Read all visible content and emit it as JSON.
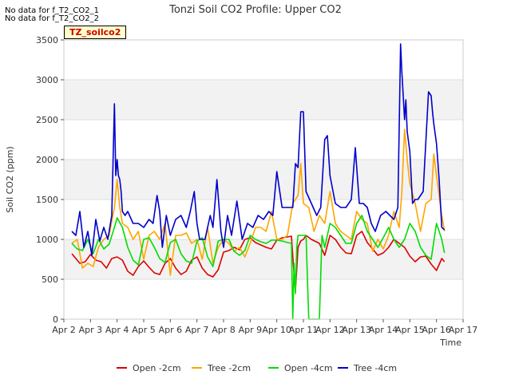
{
  "notes": {
    "line1": "No data for f_T2_CO2_1",
    "line2": "No data for f_T2_CO2_2"
  },
  "badge": "TZ_soilco2",
  "chart_data": {
    "type": "line",
    "title": "Tonzi Soil CO2 Profile: Upper CO2",
    "xlabel": "Time",
    "ylabel": "Soil CO2 (ppm)",
    "xlim": [
      2,
      17
    ],
    "ylim": [
      0,
      3500
    ],
    "yticks": [
      0,
      500,
      1000,
      1500,
      2000,
      2500,
      3000,
      3500
    ],
    "xticks": [
      2,
      3,
      4,
      5,
      6,
      7,
      8,
      9,
      10,
      11,
      12,
      13,
      14,
      15,
      16,
      17
    ],
    "xticklabels": [
      "Apr 2",
      "Apr 3",
      "Apr 4",
      "Apr 5",
      "Apr 6",
      "Apr 7",
      "Apr 8",
      "Apr 9",
      "Apr 10",
      "Apr 11",
      "Apr 12",
      "Apr 13",
      "Apr 14",
      "Apr 15",
      "Apr 16",
      "Apr 17"
    ],
    "legend_position": "bottom",
    "series": [
      {
        "name": "Open -2cm",
        "color": "#dd0000",
        "x": [
          2.3,
          2.6,
          2.8,
          3.0,
          3.2,
          3.4,
          3.6,
          3.8,
          4.0,
          4.2,
          4.4,
          4.6,
          4.8,
          5.0,
          5.2,
          5.4,
          5.6,
          5.8,
          6.0,
          6.2,
          6.4,
          6.6,
          6.8,
          7.0,
          7.2,
          7.4,
          7.6,
          7.8,
          8.0,
          8.2,
          8.4,
          8.6,
          8.8,
          9.0,
          9.2,
          9.4,
          9.6,
          9.8,
          10.0,
          10.2,
          10.4,
          10.55,
          10.62,
          10.7,
          10.8,
          10.9,
          11.0,
          11.1,
          11.3,
          11.6,
          11.8,
          12.0,
          12.2,
          12.4,
          12.6,
          12.8,
          13.0,
          13.2,
          13.4,
          13.6,
          13.8,
          14.0,
          14.2,
          14.4,
          14.6,
          14.8,
          15.0,
          15.2,
          15.4,
          15.6,
          15.8,
          16.0,
          16.2,
          16.3
        ],
        "y": [
          820,
          700,
          720,
          810,
          740,
          720,
          640,
          760,
          780,
          740,
          600,
          550,
          660,
          730,
          650,
          580,
          560,
          700,
          760,
          640,
          560,
          600,
          740,
          780,
          640,
          560,
          530,
          620,
          840,
          860,
          900,
          870,
          1000,
          1020,
          960,
          930,
          900,
          880,
          990,
          1020,
          1030,
          1040,
          700,
          360,
          900,
          980,
          1000,
          1050,
          1000,
          950,
          800,
          1050,
          1000,
          900,
          830,
          820,
          1050,
          1100,
          960,
          880,
          800,
          830,
          900,
          1000,
          950,
          900,
          790,
          720,
          780,
          790,
          690,
          610,
          760,
          720
        ]
      },
      {
        "name": "Tree -2cm",
        "color": "#ffa500",
        "x": [
          2.3,
          2.5,
          2.7,
          2.9,
          3.1,
          3.3,
          3.5,
          3.7,
          3.9,
          4.0,
          4.1,
          4.2,
          4.4,
          4.6,
          4.8,
          5.0,
          5.2,
          5.4,
          5.6,
          5.8,
          6.0,
          6.2,
          6.4,
          6.6,
          6.8,
          7.0,
          7.2,
          7.4,
          7.6,
          7.8,
          8.0,
          8.2,
          8.4,
          8.6,
          8.8,
          9.0,
          9.2,
          9.4,
          9.6,
          9.8,
          10.0,
          10.2,
          10.4,
          10.6,
          10.8,
          10.9,
          11.0,
          11.2,
          11.4,
          11.6,
          11.8,
          12.0,
          12.2,
          12.4,
          12.6,
          12.8,
          13.0,
          13.2,
          13.4,
          13.6,
          13.8,
          14.0,
          14.2,
          14.4,
          14.6,
          14.7,
          14.8,
          14.9,
          15.0,
          15.2,
          15.4,
          15.6,
          15.8,
          15.9,
          16.0,
          16.2,
          16.3
        ],
        "y": [
          950,
          1000,
          640,
          700,
          660,
          900,
          1000,
          1050,
          1400,
          1750,
          1400,
          1200,
          1150,
          1000,
          1100,
          750,
          1050,
          1100,
          1000,
          1200,
          550,
          1050,
          1050,
          1080,
          950,
          1000,
          750,
          1150,
          700,
          900,
          1000,
          950,
          850,
          900,
          780,
          950,
          1150,
          1150,
          1100,
          1350,
          1000,
          1000,
          1050,
          1450,
          1550,
          1950,
          1450,
          1400,
          1100,
          1300,
          1200,
          1600,
          1200,
          1100,
          1050,
          1000,
          1350,
          1250,
          1200,
          850,
          1000,
          880,
          1050,
          1350,
          1150,
          1600,
          2380,
          2000,
          1700,
          1450,
          1100,
          1450,
          1500,
          2070,
          1800,
          1300,
          1100
        ]
      },
      {
        "name": "Open -4cm",
        "color": "#00dd00",
        "x": [
          2.3,
          2.5,
          2.7,
          2.9,
          3.1,
          3.3,
          3.5,
          3.7,
          3.9,
          4.0,
          4.2,
          4.4,
          4.6,
          4.8,
          5.0,
          5.2,
          5.4,
          5.6,
          5.8,
          6.0,
          6.2,
          6.4,
          6.6,
          6.8,
          7.0,
          7.2,
          7.4,
          7.6,
          7.8,
          8.0,
          8.2,
          8.4,
          8.6,
          8.8,
          9.0,
          9.2,
          9.4,
          9.6,
          9.8,
          10.0,
          10.2,
          10.4,
          10.55,
          10.6,
          10.65,
          10.7,
          10.75,
          10.8,
          10.9,
          11.0,
          11.1,
          11.2,
          11.25,
          11.4,
          11.6,
          11.7,
          11.8,
          12.0,
          12.2,
          12.4,
          12.6,
          12.8,
          13.0,
          13.2,
          13.4,
          13.6,
          13.8,
          14.0,
          14.2,
          14.4,
          14.6,
          14.8,
          15.0,
          15.2,
          15.4,
          15.6,
          15.8,
          16.0,
          16.2,
          16.3
        ],
        "y": [
          950,
          880,
          860,
          1000,
          820,
          1000,
          880,
          940,
          1150,
          1270,
          1150,
          900,
          740,
          680,
          1000,
          1020,
          900,
          760,
          710,
          960,
          1000,
          820,
          730,
          700,
          980,
          1020,
          780,
          660,
          980,
          1000,
          1000,
          850,
          800,
          860,
          1050,
          1000,
          970,
          950,
          990,
          990,
          980,
          960,
          950,
          0,
          700,
          320,
          900,
          1050,
          1050,
          1050,
          1050,
          0,
          0,
          0,
          0,
          1050,
          900,
          1200,
          1150,
          1050,
          950,
          950,
          1200,
          1300,
          1100,
          1000,
          900,
          1020,
          1150,
          1000,
          900,
          1000,
          1200,
          1100,
          900,
          800,
          750,
          1200,
          1000,
          830
        ]
      },
      {
        "name": "Tree -4cm",
        "color": "#0000cc",
        "x": [
          2.3,
          2.45,
          2.6,
          2.75,
          2.9,
          3.05,
          3.2,
          3.35,
          3.5,
          3.65,
          3.8,
          3.9,
          3.95,
          4.0,
          4.05,
          4.1,
          4.15,
          4.2,
          4.3,
          4.4,
          4.6,
          4.8,
          5.0,
          5.2,
          5.35,
          5.5,
          5.6,
          5.7,
          5.85,
          6.0,
          6.2,
          6.4,
          6.6,
          6.75,
          6.9,
          7.0,
          7.1,
          7.3,
          7.5,
          7.6,
          7.75,
          7.9,
          8.0,
          8.15,
          8.3,
          8.5,
          8.7,
          8.9,
          9.1,
          9.3,
          9.5,
          9.7,
          9.85,
          10.0,
          10.2,
          10.4,
          10.6,
          10.7,
          10.8,
          10.9,
          11.0,
          11.1,
          11.3,
          11.5,
          11.65,
          11.8,
          11.9,
          12.0,
          12.2,
          12.4,
          12.6,
          12.8,
          12.95,
          13.1,
          13.25,
          13.4,
          13.55,
          13.7,
          13.9,
          14.1,
          14.25,
          14.4,
          14.55,
          14.65,
          14.7,
          14.75,
          14.8,
          14.85,
          14.9,
          15.0,
          15.1,
          15.2,
          15.3,
          15.5,
          15.7,
          15.8,
          15.85,
          15.9,
          16.0,
          16.1,
          16.2,
          16.3
        ],
        "y": [
          1100,
          1050,
          1350,
          900,
          1100,
          800,
          1250,
          980,
          1150,
          1000,
          1300,
          2700,
          1800,
          2000,
          1800,
          1750,
          1600,
          1350,
          1300,
          1350,
          1200,
          1200,
          1150,
          1250,
          1200,
          1550,
          1350,
          900,
          1300,
          1050,
          1250,
          1300,
          1150,
          1350,
          1600,
          1200,
          1000,
          1000,
          1300,
          1150,
          1750,
          1100,
          900,
          1300,
          1050,
          1480,
          1000,
          1200,
          1150,
          1300,
          1250,
          1350,
          1300,
          1850,
          1400,
          1400,
          1400,
          1950,
          1900,
          2600,
          2600,
          1600,
          1450,
          1300,
          1400,
          2250,
          2300,
          1800,
          1450,
          1400,
          1400,
          1500,
          2150,
          1450,
          1450,
          1400,
          1200,
          1100,
          1300,
          1350,
          1300,
          1250,
          1400,
          3450,
          3100,
          2800,
          2500,
          2750,
          2350,
          2100,
          1450,
          1500,
          1500,
          1600,
          2850,
          2800,
          2600,
          2450,
          2200,
          1750,
          1150,
          1120
        ]
      }
    ]
  }
}
